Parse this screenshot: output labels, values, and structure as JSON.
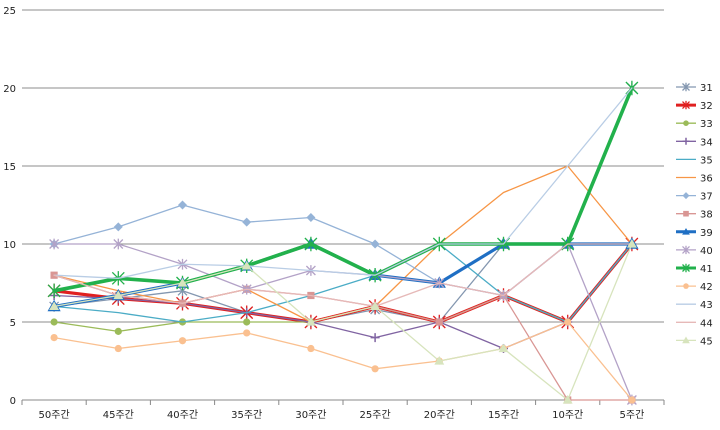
{
  "chart_data": {
    "type": "line",
    "categories": [
      "50주간",
      "45주간",
      "40주간",
      "35주간",
      "30주간",
      "25주간",
      "20주간",
      "15주간",
      "10주간",
      "5주간"
    ],
    "ylim": [
      0,
      25
    ],
    "yticks": [
      0,
      5,
      10,
      15,
      20,
      25
    ],
    "grid": "horizontal",
    "legend": "right",
    "series": [
      {
        "name": "31",
        "color": "#8497b0",
        "marker": "x",
        "width": 1.3,
        "values": [
          6.0,
          6.5,
          7.0,
          5.6,
          5.0,
          5.8,
          5.0,
          10.0,
          10.0,
          20.0
        ]
      },
      {
        "name": "32",
        "color": "#e02020",
        "marker": "x",
        "width": 3.2,
        "values": [
          7.0,
          6.5,
          6.2,
          5.6,
          5.0,
          6.0,
          5.0,
          6.7,
          5.0,
          10.0
        ]
      },
      {
        "name": "33",
        "color": "#9bbb59",
        "marker": "circle",
        "width": 1.3,
        "values": [
          5.0,
          4.4,
          5.0,
          5.0,
          5.0,
          6.0,
          5.0,
          6.7,
          5.0,
          10.0
        ]
      },
      {
        "name": "34",
        "color": "#8064a2",
        "marker": "plus",
        "width": 1.3,
        "values": [
          6.7,
          6.5,
          6.2,
          5.6,
          5.0,
          4.0,
          5.0,
          3.3,
          5.0,
          10.0
        ]
      },
      {
        "name": "35",
        "color": "#4bacc6",
        "marker": "none",
        "width": 1.3,
        "values": [
          6.0,
          5.6,
          5.0,
          5.6,
          6.7,
          8.0,
          10.0,
          6.7,
          5.0,
          10.0
        ]
      },
      {
        "name": "36",
        "color": "#f79646",
        "marker": "none",
        "width": 1.3,
        "values": [
          8.0,
          7.0,
          6.2,
          7.1,
          5.0,
          6.0,
          10.0,
          13.3,
          15.0,
          10.0
        ]
      },
      {
        "name": "37",
        "color": "#95b3d7",
        "marker": "diamond",
        "width": 1.3,
        "values": [
          10.0,
          11.1,
          12.5,
          11.4,
          11.7,
          10.0,
          7.5,
          6.7,
          10.0,
          10.0
        ]
      },
      {
        "name": "38",
        "color": "#d99694",
        "marker": "square",
        "width": 1.3,
        "values": [
          8.0,
          6.7,
          6.2,
          7.1,
          6.7,
          6.0,
          5.0,
          6.7,
          0.0,
          0.0
        ]
      },
      {
        "name": "39",
        "color": "#1f6fc4",
        "marker": "triangle",
        "width": 3.2,
        "values": [
          6.0,
          6.7,
          7.5,
          8.6,
          10.0,
          8.0,
          7.5,
          10.0,
          10.0,
          10.0
        ]
      },
      {
        "name": "40",
        "color": "#b3a2c7",
        "marker": "x",
        "width": 1.3,
        "values": [
          10.0,
          10.0,
          8.7,
          7.1,
          8.3,
          8.0,
          7.5,
          6.7,
          10.0,
          0.0
        ]
      },
      {
        "name": "41",
        "color": "#22b14c",
        "marker": "x",
        "width": 3.6,
        "values": [
          7.0,
          7.8,
          7.5,
          8.6,
          10.0,
          8.0,
          10.0,
          10.0,
          10.0,
          20.0
        ]
      },
      {
        "name": "42",
        "color": "#fac090",
        "marker": "circle",
        "width": 1.3,
        "values": [
          4.0,
          3.3,
          3.8,
          4.3,
          3.3,
          2.0,
          2.5,
          3.3,
          5.0,
          0.0
        ]
      },
      {
        "name": "43",
        "color": "#b9cde5",
        "marker": "none",
        "width": 1.3,
        "values": [
          8.0,
          7.8,
          8.7,
          8.6,
          8.3,
          8.0,
          10.0,
          10.0,
          15.0,
          20.0
        ]
      },
      {
        "name": "44",
        "color": "#e6b9b8",
        "marker": "none",
        "width": 1.3,
        "values": [
          8.0,
          6.7,
          6.2,
          7.1,
          6.7,
          6.0,
          7.5,
          6.7,
          10.0,
          10.0
        ]
      },
      {
        "name": "45",
        "color": "#d7e4bd",
        "marker": "triangle",
        "width": 1.3,
        "values": [
          6.0,
          6.7,
          7.5,
          8.6,
          5.0,
          6.0,
          2.5,
          3.3,
          0.0,
          10.0
        ]
      }
    ]
  }
}
